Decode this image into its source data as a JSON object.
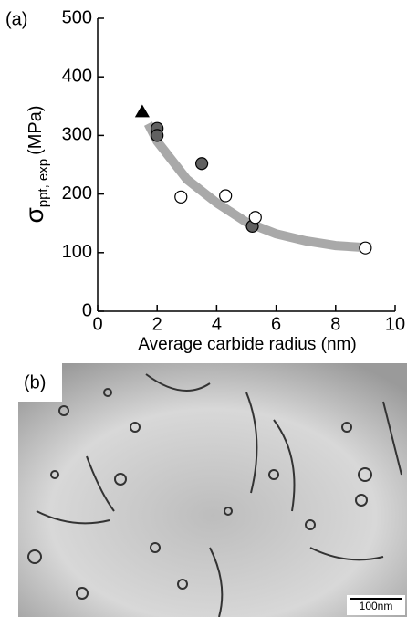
{
  "chart_data": {
    "type": "scatter",
    "panel_label": "(a)",
    "xlabel": "Average carbide radius (nm)",
    "ylabel_symbol": "σ",
    "ylabel_subscript": "ppt, exp",
    "ylabel_unit": "(MPa)",
    "xlim": [
      0,
      10
    ],
    "ylim": [
      0,
      500
    ],
    "xticks": [
      0,
      2,
      4,
      6,
      8,
      10
    ],
    "yticks": [
      0,
      100,
      200,
      300,
      400,
      500
    ],
    "fit": {
      "color": "#a9a9a9",
      "x": [
        1.7,
        2,
        3,
        4,
        5,
        6,
        7,
        8,
        9.2
      ],
      "values": [
        320,
        290,
        225,
        185,
        152,
        132,
        120,
        112,
        108
      ]
    },
    "series": [
      {
        "marker": "triangle",
        "color": "#000000",
        "x": [
          1.5
        ],
        "values": [
          340
        ]
      },
      {
        "marker": "circle",
        "color": "#606060",
        "x": [
          2.0,
          2.0,
          3.5,
          5.2
        ],
        "values": [
          312,
          300,
          252,
          145
        ]
      },
      {
        "marker": "circle",
        "color": "#ffffff",
        "x": [
          2.8,
          4.3,
          5.3,
          9.0
        ],
        "values": [
          195,
          197,
          160,
          108
        ]
      }
    ]
  },
  "micrograph": {
    "panel_label": "(b)",
    "scale_bar": "100nm"
  }
}
